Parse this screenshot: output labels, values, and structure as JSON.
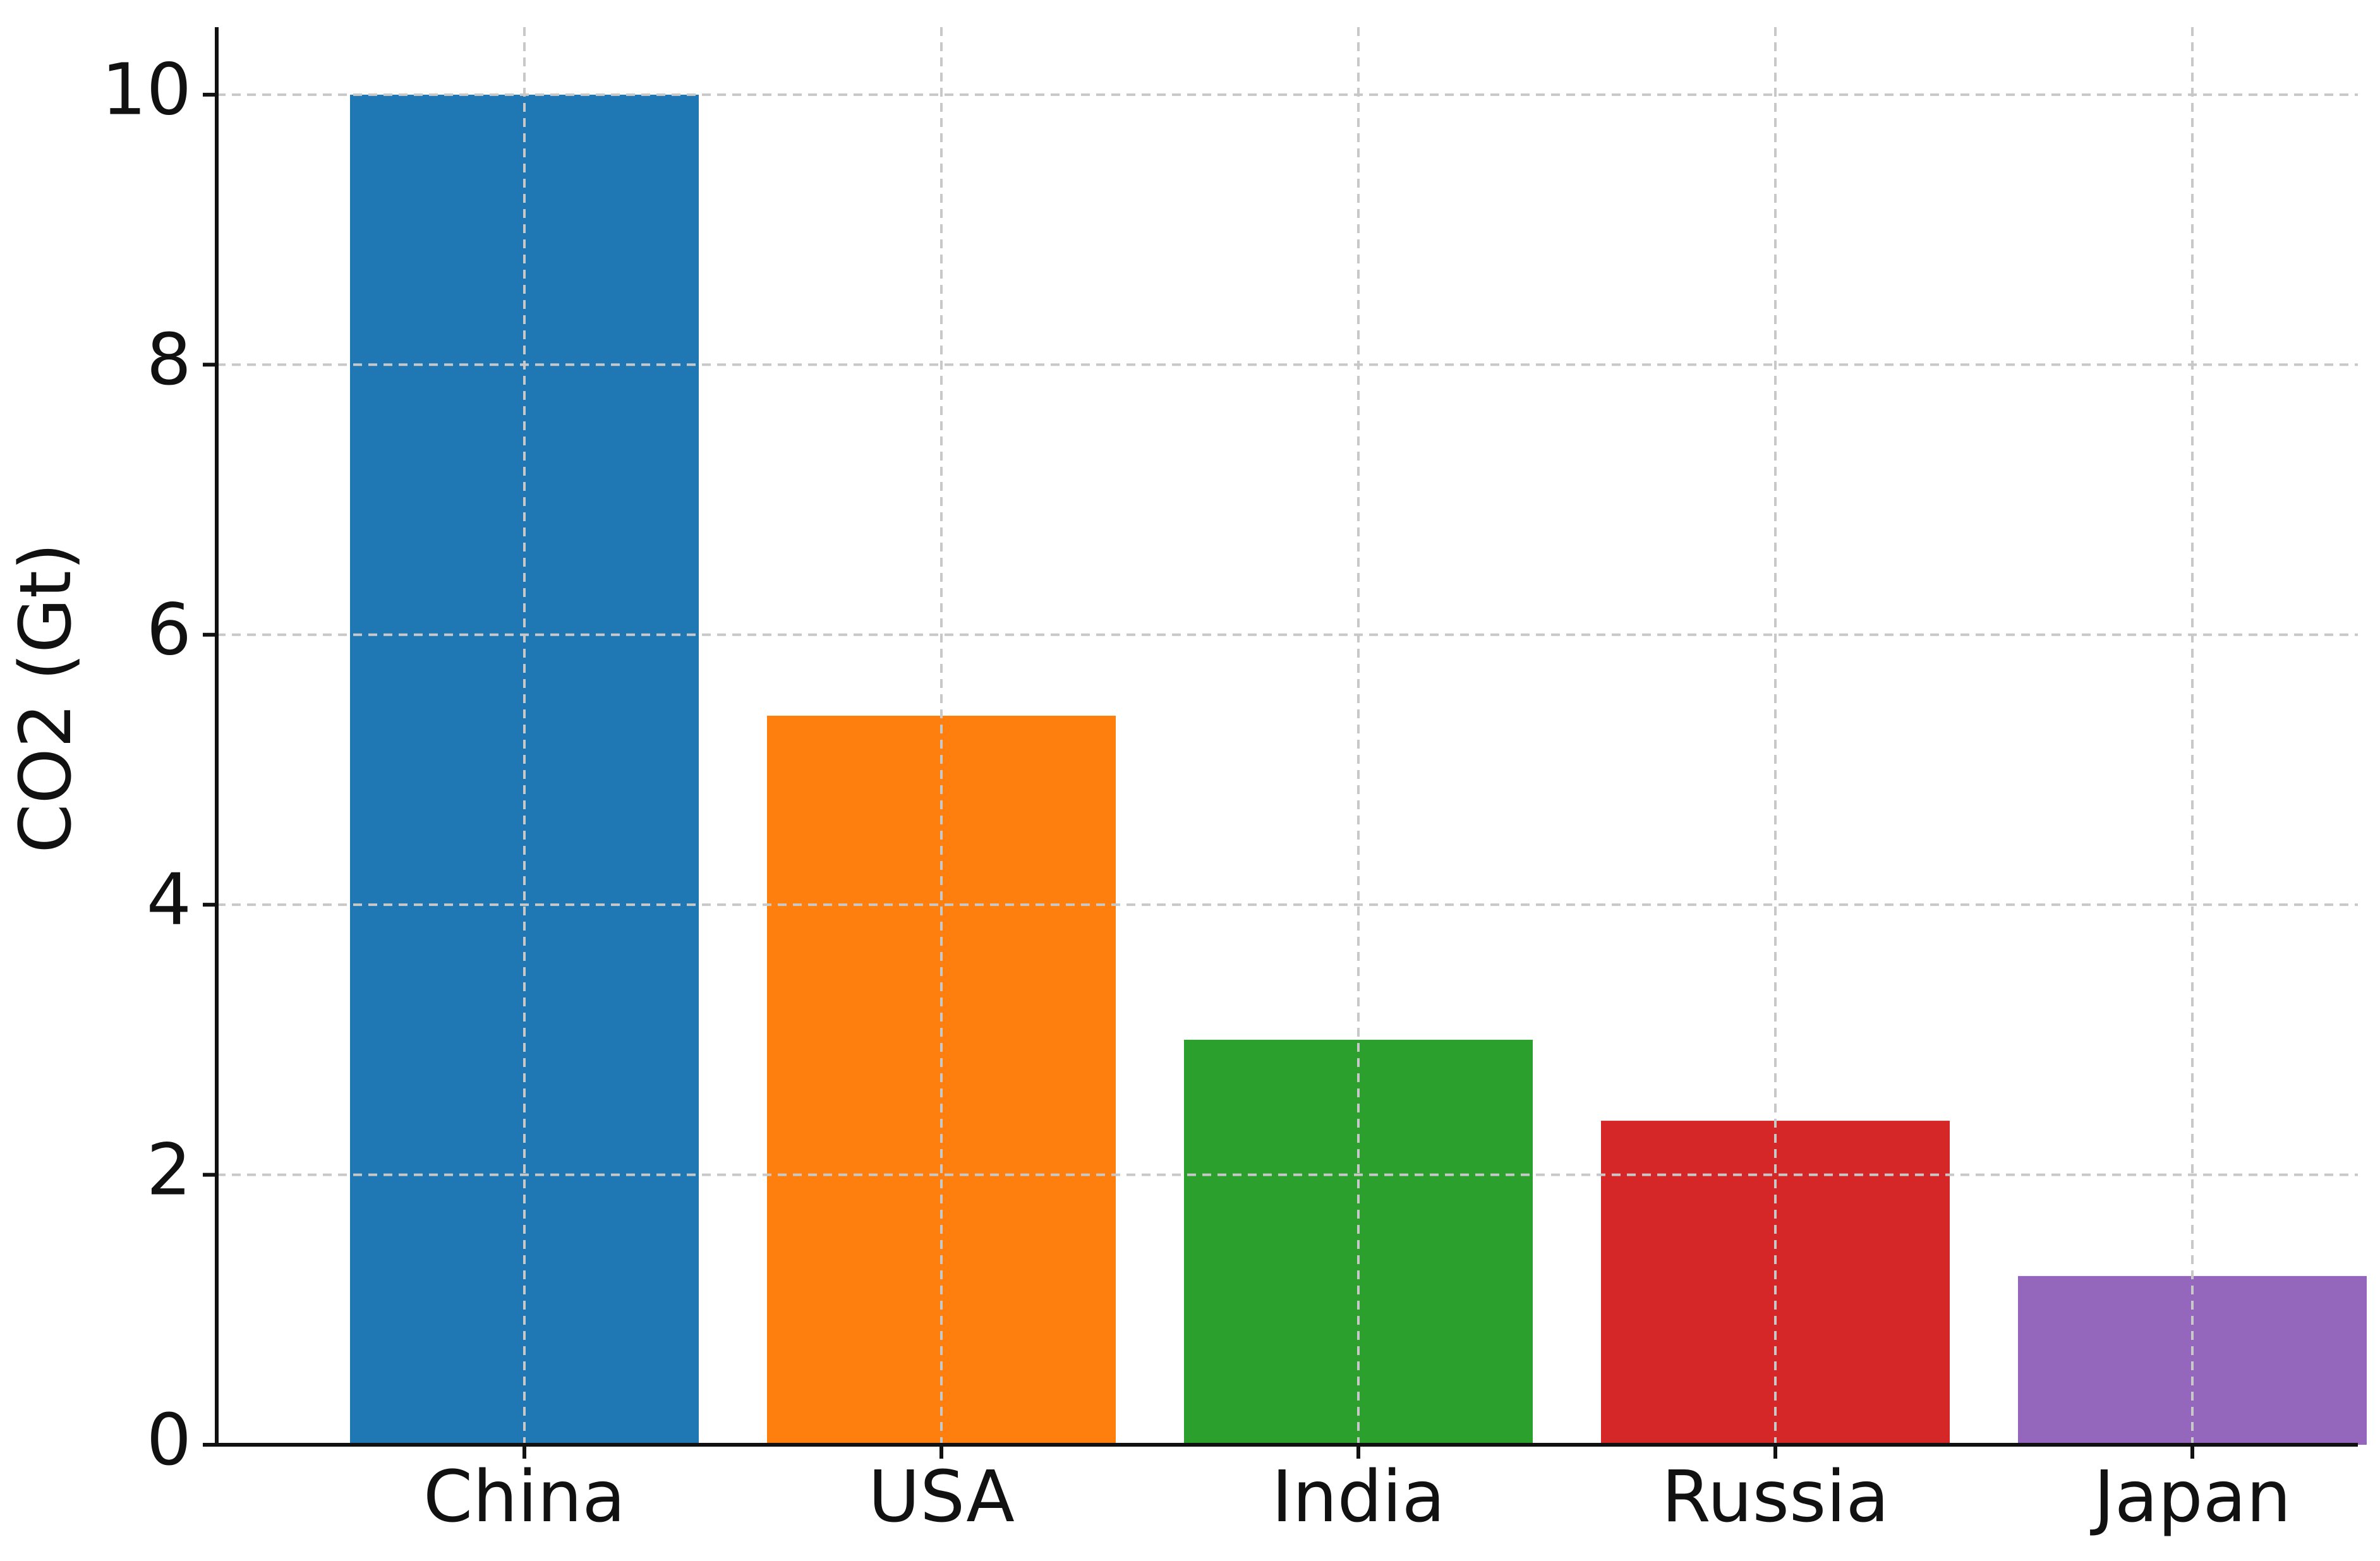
{
  "chart_data": {
    "type": "bar",
    "y_label": "CO2 (Gt)",
    "categories": [
      "China",
      "USA",
      "India",
      "Russia",
      "Japan"
    ],
    "values": [
      10,
      5.4,
      3.0,
      2.4,
      1.25
    ],
    "colors": [
      "#1f77b4",
      "#ff7f0e",
      "#2ca02c",
      "#d62728",
      "#9467bd"
    ],
    "ylim": [
      0,
      10.5
    ],
    "yticks": [
      0,
      2,
      4,
      6,
      8,
      10
    ],
    "grid": true
  }
}
